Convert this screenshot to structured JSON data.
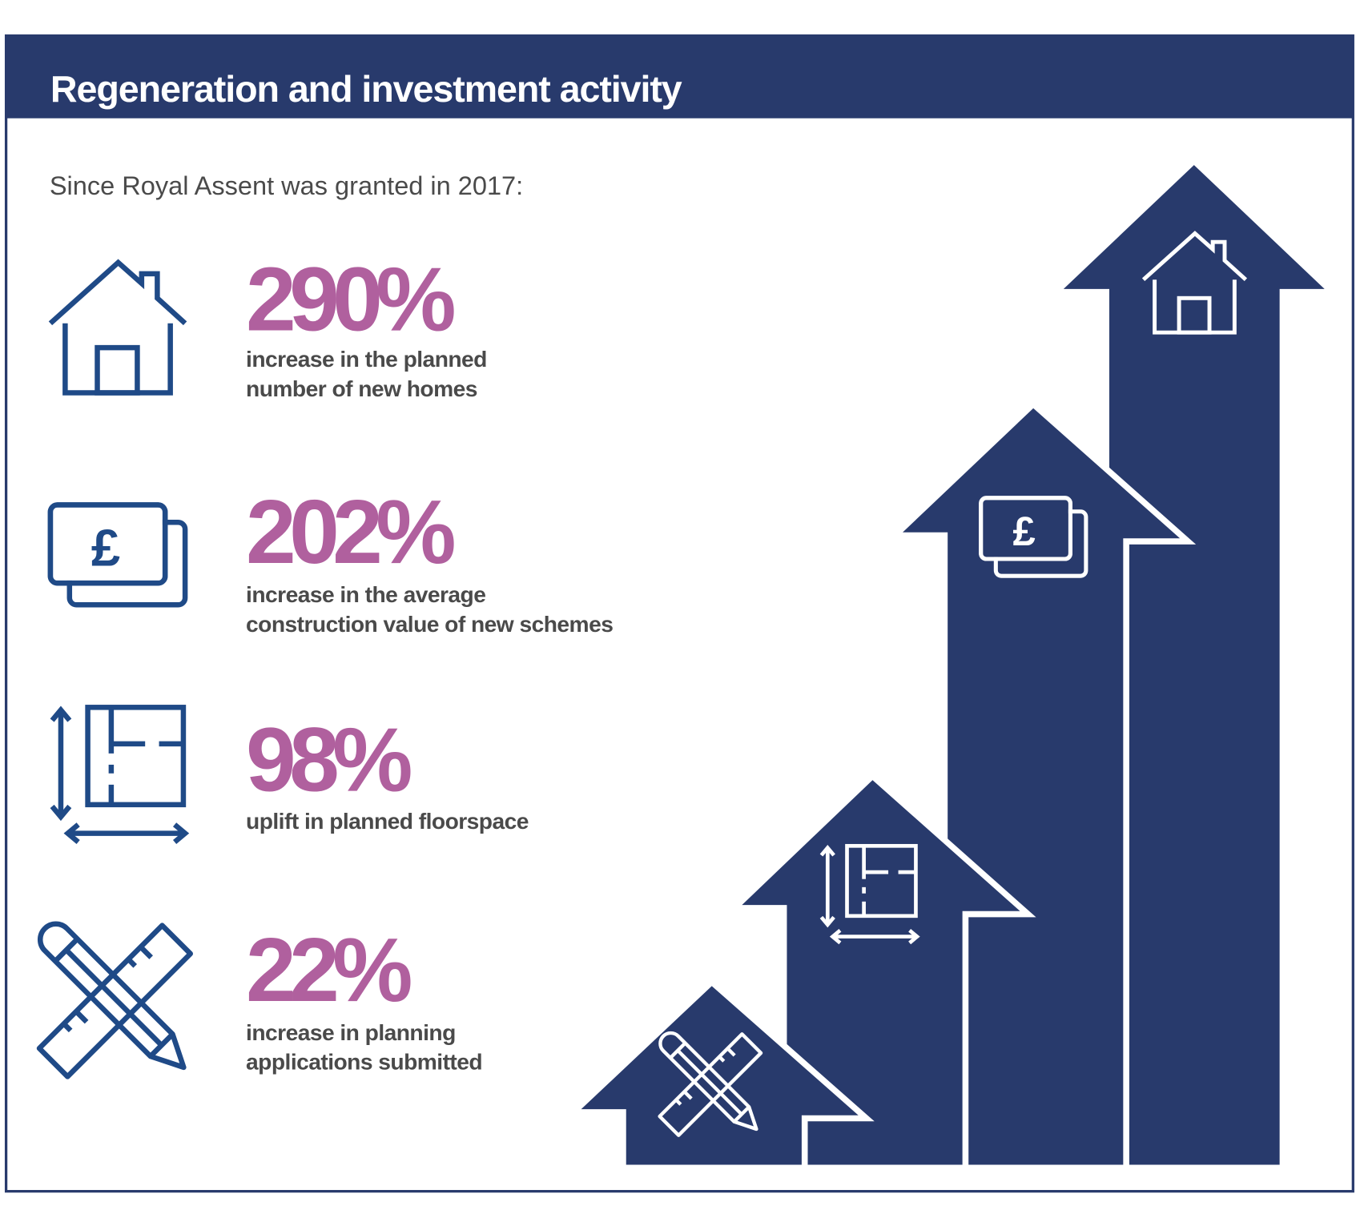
{
  "header": {
    "title": "Regeneration and investment activity"
  },
  "intro": "Since Royal Assent was granted in 2017:",
  "colors": {
    "navy": "#283a6c",
    "magenta": "#b0609e",
    "text": "#4a4a4a"
  },
  "stats": [
    {
      "icon": "house-icon",
      "value": "290%",
      "lines": [
        "increase in the planned",
        "number of new homes"
      ]
    },
    {
      "icon": "pound-notes-icon",
      "value": "202%",
      "lines": [
        "increase in the average",
        "construction value of new schemes"
      ]
    },
    {
      "icon": "floorplan-icon",
      "value": "98%",
      "lines": [
        "uplift in planned floorspace"
      ]
    },
    {
      "icon": "pencil-ruler-icon",
      "value": "22%",
      "lines": [
        "increase in planning",
        "applications submitted"
      ]
    }
  ],
  "pound_symbol": "£"
}
